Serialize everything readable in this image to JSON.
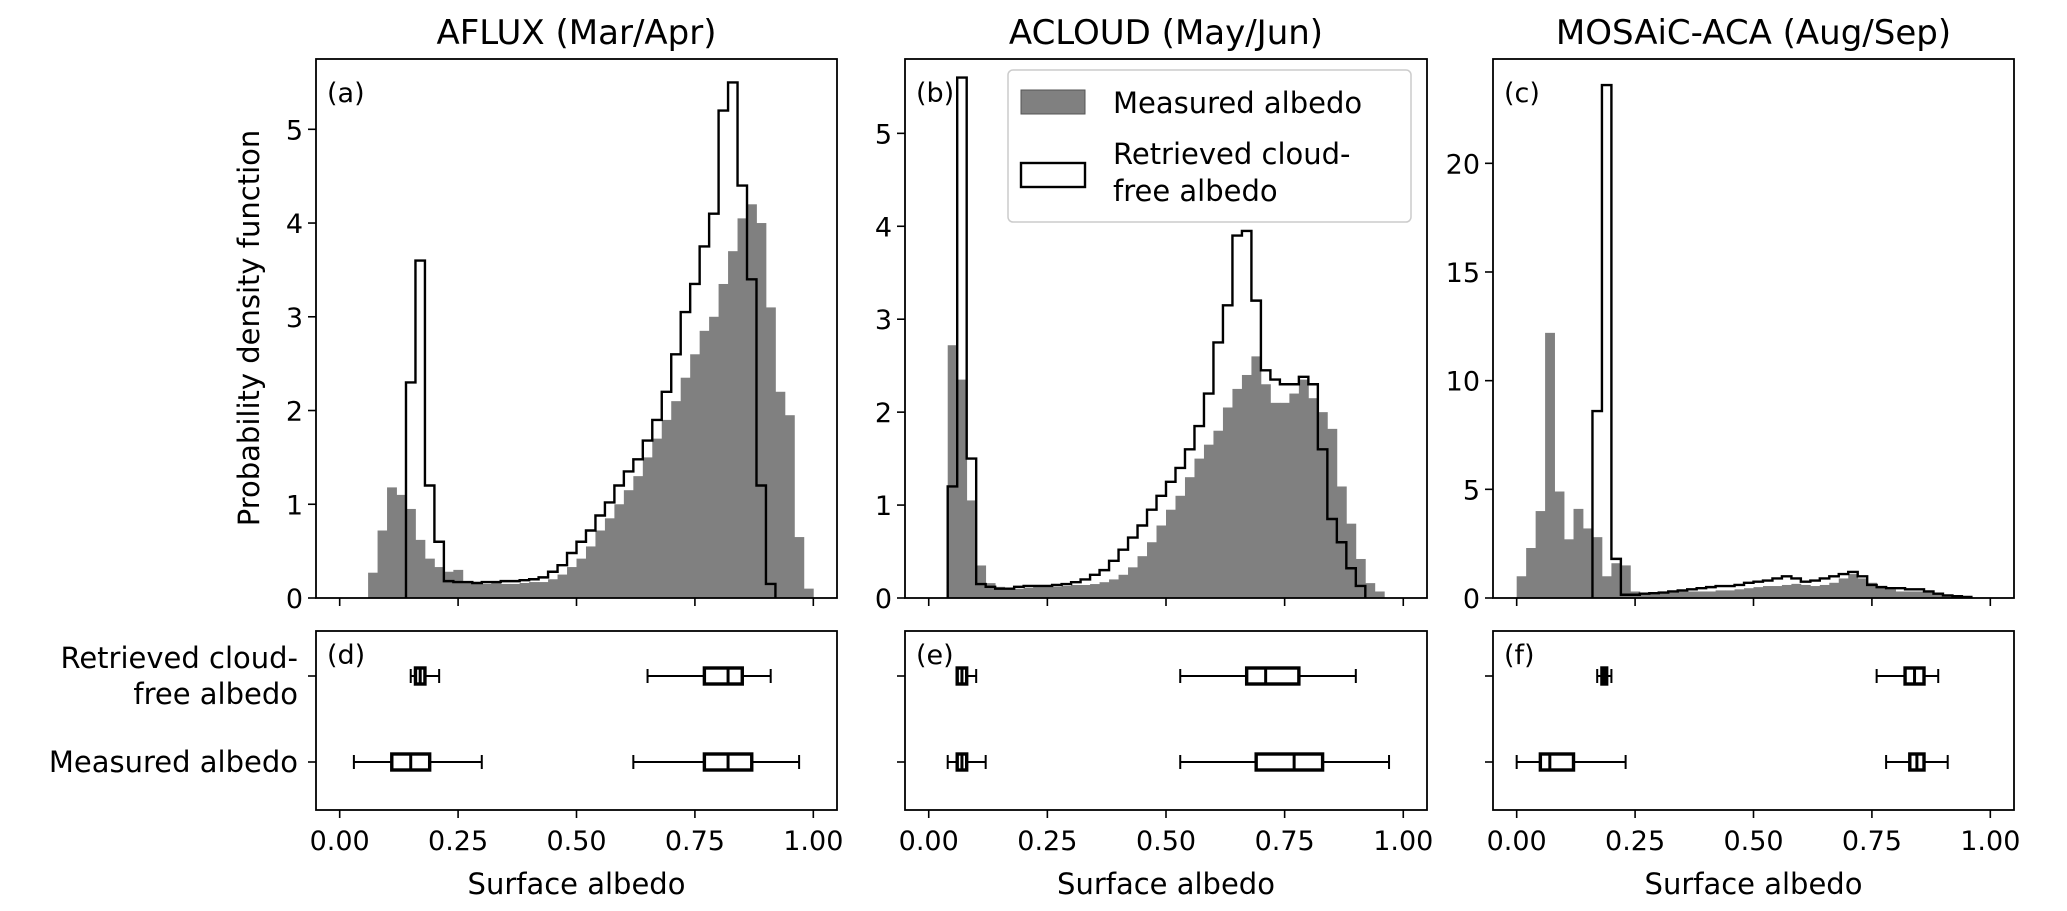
{
  "chart_data": [
    {
      "panel": "a",
      "type": "histogram",
      "title": "AFLUX (Mar/Apr)",
      "tag": "(a)",
      "xlabel": "",
      "ylabel": "Probability density function",
      "xlim": [
        -0.05,
        1.05
      ],
      "ylim": [
        0,
        5.75
      ],
      "xticks": [
        0.0,
        0.25,
        0.5,
        0.75,
        1.0
      ],
      "yticks": [
        0,
        1,
        2,
        3,
        4,
        5
      ],
      "ytick_labels": [
        "0",
        "1",
        "2",
        "3",
        "4",
        "5"
      ],
      "bin_width": 0.02,
      "series": [
        {
          "name": "Measured albedo",
          "style": "filled",
          "color": "#808080",
          "bin_start": 0.06,
          "values": [
            0.27,
            0.72,
            1.18,
            1.1,
            0.95,
            0.62,
            0.42,
            0.33,
            0.28,
            0.3,
            0.18,
            0.16,
            0.15,
            0.16,
            0.15,
            0.15,
            0.16,
            0.17,
            0.17,
            0.2,
            0.25,
            0.33,
            0.42,
            0.55,
            0.72,
            0.85,
            1.0,
            1.15,
            1.3,
            1.5,
            1.7,
            1.9,
            2.1,
            2.35,
            2.6,
            2.85,
            3.0,
            3.35,
            3.7,
            4.05,
            4.2,
            4.0,
            3.1,
            2.2,
            1.95,
            0.65,
            0.1
          ]
        },
        {
          "name": "Retrieved cloud-free albedo",
          "style": "step",
          "color": "#000000",
          "bin_start": 0.14,
          "values": [
            2.3,
            3.6,
            1.2,
            0.6,
            0.18,
            0.17,
            0.17,
            0.16,
            0.17,
            0.17,
            0.18,
            0.18,
            0.19,
            0.2,
            0.22,
            0.28,
            0.35,
            0.48,
            0.6,
            0.72,
            0.88,
            1.02,
            1.2,
            1.35,
            1.48,
            1.68,
            1.9,
            2.2,
            2.6,
            3.05,
            3.35,
            3.75,
            4.1,
            5.2,
            5.5,
            4.4,
            3.4,
            1.2,
            0.15
          ]
        }
      ],
      "boxplot": {
        "tag": "(d)",
        "rows": [
          "Retrieved cloud-free albedo",
          "Measured albedo"
        ],
        "row_labels": [
          "Retrieved cloud-",
          "free albedo",
          "Measured albedo"
        ],
        "boxes": [
          {
            "row": 0,
            "whisker_low": 0.15,
            "q1": 0.16,
            "median": 0.17,
            "q3": 0.18,
            "whisker_high": 0.21
          },
          {
            "row": 0,
            "whisker_low": 0.65,
            "q1": 0.77,
            "median": 0.82,
            "q3": 0.85,
            "whisker_high": 0.91
          },
          {
            "row": 1,
            "whisker_low": 0.03,
            "q1": 0.11,
            "median": 0.15,
            "q3": 0.19,
            "whisker_high": 0.3
          },
          {
            "row": 1,
            "whisker_low": 0.62,
            "q1": 0.77,
            "median": 0.82,
            "q3": 0.87,
            "whisker_high": 0.97
          }
        ]
      },
      "bottom_xlabel": "Surface albedo",
      "bottom_xtick_labels": [
        "0.00",
        "0.25",
        "0.50",
        "0.75",
        "1.00"
      ]
    },
    {
      "panel": "b",
      "type": "histogram",
      "title": "ACLOUD (May/Jun)",
      "tag": "(b)",
      "xlabel": "",
      "ylabel": "",
      "xlim": [
        -0.05,
        1.05
      ],
      "ylim": [
        0,
        5.8
      ],
      "xticks": [
        0.0,
        0.25,
        0.5,
        0.75,
        1.0
      ],
      "yticks": [
        0,
        1,
        2,
        3,
        4,
        5
      ],
      "ytick_labels": [
        "0",
        "1",
        "2",
        "3",
        "4",
        "5"
      ],
      "bin_width": 0.02,
      "series": [
        {
          "name": "Measured albedo",
          "style": "filled",
          "color": "#808080",
          "bin_start": 0.04,
          "values": [
            2.72,
            2.35,
            1.05,
            0.35,
            0.16,
            0.12,
            0.1,
            0.1,
            0.11,
            0.12,
            0.12,
            0.12,
            0.13,
            0.14,
            0.14,
            0.15,
            0.17,
            0.2,
            0.25,
            0.33,
            0.45,
            0.6,
            0.78,
            0.95,
            1.1,
            1.3,
            1.5,
            1.65,
            1.8,
            2.05,
            2.25,
            2.4,
            2.6,
            2.3,
            2.1,
            2.1,
            2.2,
            2.35,
            2.15,
            2.0,
            1.82,
            1.2,
            0.8,
            0.42,
            0.16,
            0.07
          ]
        },
        {
          "name": "Retrieved cloud-free albedo",
          "style": "step",
          "color": "#000000",
          "bin_start": 0.04,
          "values": [
            1.2,
            5.6,
            1.5,
            0.15,
            0.12,
            0.1,
            0.1,
            0.12,
            0.13,
            0.13,
            0.13,
            0.14,
            0.15,
            0.17,
            0.2,
            0.25,
            0.3,
            0.4,
            0.52,
            0.65,
            0.78,
            0.95,
            1.1,
            1.25,
            1.4,
            1.6,
            1.85,
            2.2,
            2.75,
            3.15,
            3.9,
            3.95,
            3.2,
            2.45,
            2.35,
            2.3,
            2.3,
            2.38,
            2.3,
            1.6,
            0.85,
            0.6,
            0.32,
            0.13
          ]
        }
      ],
      "legend": {
        "placement": "top-right",
        "entries": [
          "Measured albedo",
          "Retrieved cloud-",
          "free albedo"
        ]
      },
      "boxplot": {
        "tag": "(e)",
        "boxes": [
          {
            "row": 0,
            "whisker_low": 0.06,
            "q1": 0.06,
            "median": 0.07,
            "q3": 0.08,
            "whisker_high": 0.1
          },
          {
            "row": 0,
            "whisker_low": 0.53,
            "q1": 0.67,
            "median": 0.71,
            "q3": 0.78,
            "whisker_high": 0.9
          },
          {
            "row": 1,
            "whisker_low": 0.04,
            "q1": 0.06,
            "median": 0.07,
            "q3": 0.08,
            "whisker_high": 0.12
          },
          {
            "row": 1,
            "whisker_low": 0.53,
            "q1": 0.69,
            "median": 0.77,
            "q3": 0.83,
            "whisker_high": 0.97
          }
        ]
      },
      "bottom_xlabel": "Surface albedo",
      "bottom_xtick_labels": [
        "0.00",
        "0.25",
        "0.50",
        "0.75",
        "1.00"
      ]
    },
    {
      "panel": "c",
      "type": "histogram",
      "title": "MOSAiC-ACA (Aug/Sep)",
      "tag": "(c)",
      "xlabel": "",
      "ylabel": "",
      "xlim": [
        -0.05,
        1.05
      ],
      "ylim": [
        0,
        24.8
      ],
      "xticks": [
        0.0,
        0.25,
        0.5,
        0.75,
        1.0
      ],
      "yticks": [
        0,
        5,
        10,
        15,
        20
      ],
      "ytick_labels": [
        "0",
        "5",
        "10",
        "15",
        "20"
      ],
      "bin_width": 0.02,
      "series": [
        {
          "name": "Measured albedo",
          "style": "filled",
          "color": "#808080",
          "bin_start": 0.0,
          "values": [
            1.0,
            2.3,
            4.0,
            12.2,
            4.9,
            2.7,
            4.1,
            3.2,
            2.8,
            1.0,
            1.6,
            1.5,
            0.3,
            0.2,
            0.2,
            0.25,
            0.25,
            0.3,
            0.3,
            0.3,
            0.3,
            0.35,
            0.35,
            0.4,
            0.45,
            0.5,
            0.55,
            0.55,
            0.6,
            0.65,
            0.6,
            0.55,
            0.6,
            0.7,
            0.9,
            1.1,
            0.9,
            0.7,
            0.5,
            0.4,
            0.3,
            0.3,
            0.3,
            0.3,
            0.2,
            0.15
          ]
        },
        {
          "name": "Retrieved cloud-free albedo",
          "style": "step",
          "color": "#000000",
          "bin_start": 0.16,
          "values": [
            8.6,
            23.6,
            1.8,
            0.15,
            0.15,
            0.2,
            0.22,
            0.25,
            0.3,
            0.35,
            0.4,
            0.45,
            0.5,
            0.55,
            0.55,
            0.6,
            0.7,
            0.75,
            0.8,
            0.9,
            1.0,
            0.9,
            0.75,
            0.8,
            0.9,
            1.0,
            1.1,
            1.2,
            1.0,
            0.6,
            0.5,
            0.45,
            0.45,
            0.4,
            0.4,
            0.3,
            0.2,
            0.12,
            0.08,
            0.05
          ]
        }
      ],
      "boxplot": {
        "tag": "(f)",
        "boxes": [
          {
            "row": 0,
            "whisker_low": 0.17,
            "q1": 0.18,
            "median": 0.185,
            "q3": 0.19,
            "whisker_high": 0.2
          },
          {
            "row": 0,
            "whisker_low": 0.76,
            "q1": 0.82,
            "median": 0.84,
            "q3": 0.86,
            "whisker_high": 0.89
          },
          {
            "row": 1,
            "whisker_low": 0.0,
            "q1": 0.05,
            "median": 0.07,
            "q3": 0.12,
            "whisker_high": 0.23
          },
          {
            "row": 1,
            "whisker_low": 0.78,
            "q1": 0.83,
            "median": 0.845,
            "q3": 0.86,
            "whisker_high": 0.91
          }
        ]
      },
      "bottom_xlabel": "Surface albedo",
      "bottom_xtick_labels": [
        "0.00",
        "0.25",
        "0.50",
        "0.75",
        "1.00"
      ]
    }
  ]
}
